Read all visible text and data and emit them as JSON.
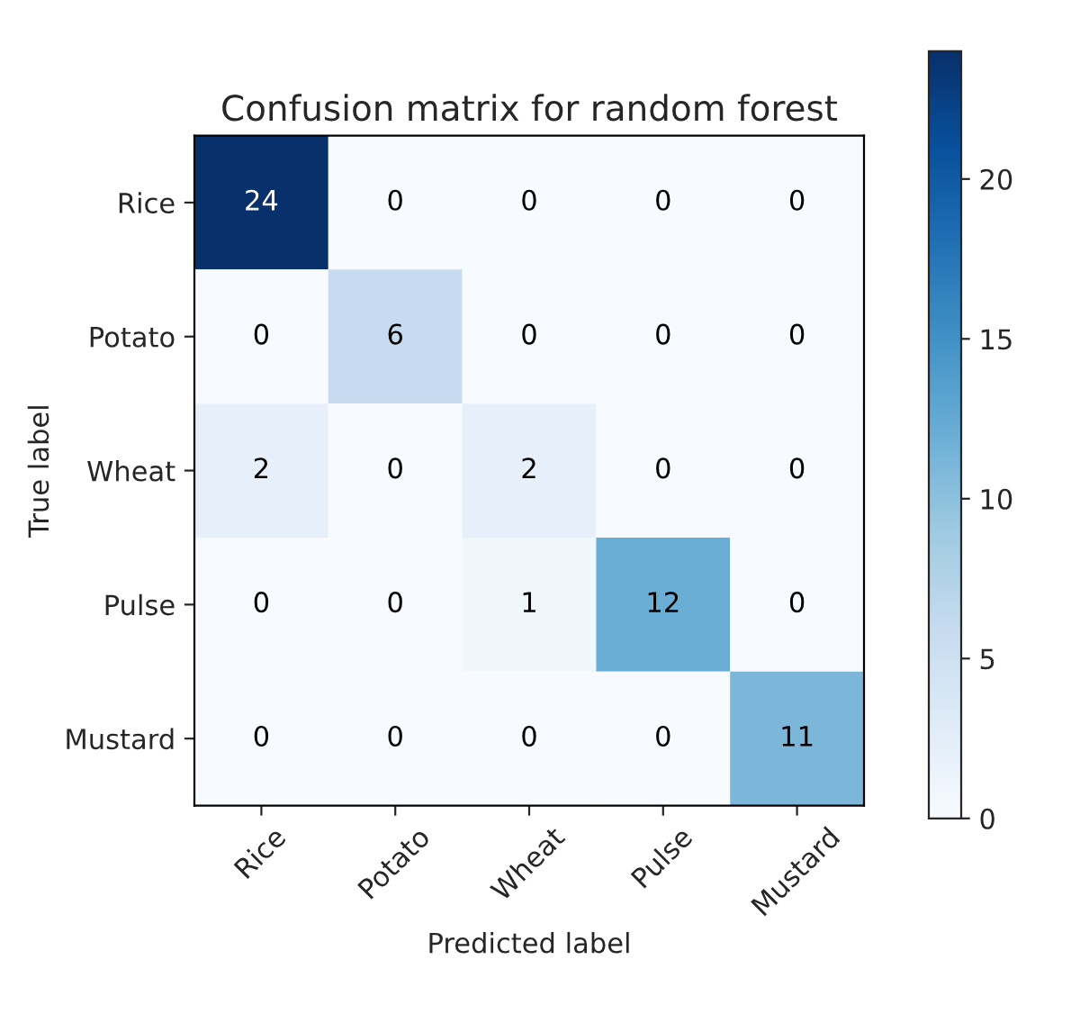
{
  "chart_data": {
    "type": "heatmap",
    "title": "Confusion matrix for random forest",
    "xlabel": "Predicted label",
    "ylabel": "True label",
    "categories": [
      "Rice",
      "Potato",
      "Wheat",
      "Pulse",
      "Mustard"
    ],
    "y_categories": [
      "Rice",
      "Potato",
      "Wheat",
      "Pulse",
      "Mustard"
    ],
    "cells": [
      [
        24,
        0,
        0,
        0,
        0
      ],
      [
        0,
        6,
        0,
        0,
        0
      ],
      [
        2,
        0,
        2,
        0,
        0
      ],
      [
        0,
        0,
        1,
        12,
        0
      ],
      [
        0,
        0,
        0,
        0,
        11
      ]
    ],
    "clim": [
      0,
      24
    ],
    "cticks": [
      0,
      5,
      10,
      15,
      20
    ],
    "data_labels": true
  }
}
